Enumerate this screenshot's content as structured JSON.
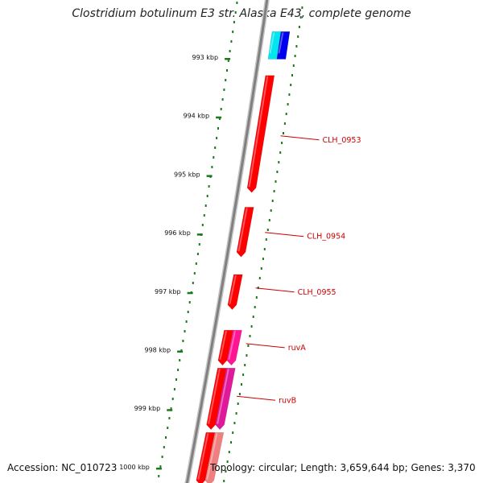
{
  "title": "Clostridium botulinum E3 str. Alaska E43, complete genome",
  "accession": "Accession: NC_010723",
  "topology": "Topology: circular; Length: 3,659,644 bp; Genes: 3,370",
  "ticks": [
    {
      "label": "993 kbp",
      "kbp": 993
    },
    {
      "label": "994 kbp",
      "kbp": 994
    },
    {
      "label": "995 kbp",
      "kbp": 995
    },
    {
      "label": "996 kbp",
      "kbp": 996
    },
    {
      "label": "997 kbp",
      "kbp": 997
    },
    {
      "label": "998 kbp",
      "kbp": 998
    },
    {
      "label": "999 kbp",
      "kbp": 999
    },
    {
      "label": "1000 kbp",
      "kbp": 1000
    }
  ],
  "genes": [
    {
      "kbp_start": 992.55,
      "kbp_end": 993.02,
      "track": "outer",
      "color": "#00e5ee",
      "strand": "+"
    },
    {
      "kbp_start": 992.55,
      "kbp_end": 993.02,
      "track": "inner",
      "color": "#0000ee",
      "strand": "+"
    },
    {
      "kbp_start": 993.3,
      "kbp_end": 995.3,
      "track": "outer",
      "color": "#ff0000",
      "strand": "-"
    },
    {
      "kbp_start": 995.55,
      "kbp_end": 996.4,
      "track": "outer",
      "color": "#ff0000",
      "strand": "-"
    },
    {
      "kbp_start": 996.7,
      "kbp_end": 997.3,
      "track": "outer",
      "color": "#ff0000",
      "strand": "-"
    },
    {
      "kbp_start": 997.65,
      "kbp_end": 998.25,
      "track": "outer",
      "color": "#ff0000",
      "strand": "-"
    },
    {
      "kbp_start": 997.65,
      "kbp_end": 998.25,
      "track": "inner",
      "color": "#ff1493",
      "strand": "-"
    },
    {
      "kbp_start": 998.3,
      "kbp_end": 999.35,
      "track": "outer",
      "color": "#ff0000",
      "strand": "-"
    },
    {
      "kbp_start": 998.3,
      "kbp_end": 999.35,
      "track": "inner",
      "color": "#e0189a",
      "strand": "-"
    },
    {
      "kbp_start": 999.4,
      "kbp_end": 1000.3,
      "track": "outer",
      "color": "#ff0000",
      "strand": "-"
    },
    {
      "kbp_start": 999.4,
      "kbp_end": 1000.3,
      "track": "inner",
      "color": "#f08080",
      "strand": "-"
    }
  ],
  "gene_labels": [
    {
      "text": "CLH_0953",
      "kbp": 994.4
    },
    {
      "text": "CLH_0954",
      "kbp": 996.05
    },
    {
      "text": "CLH_0955",
      "kbp": 997.0
    },
    {
      "text": "ruvA",
      "kbp": 997.95
    },
    {
      "text": "ruvB",
      "kbp": 998.85
    }
  ],
  "colors": {
    "backbone": "#808080",
    "tick_dots": "#1a7a1a",
    "label_red": "#cc0000",
    "title": "#222222"
  }
}
